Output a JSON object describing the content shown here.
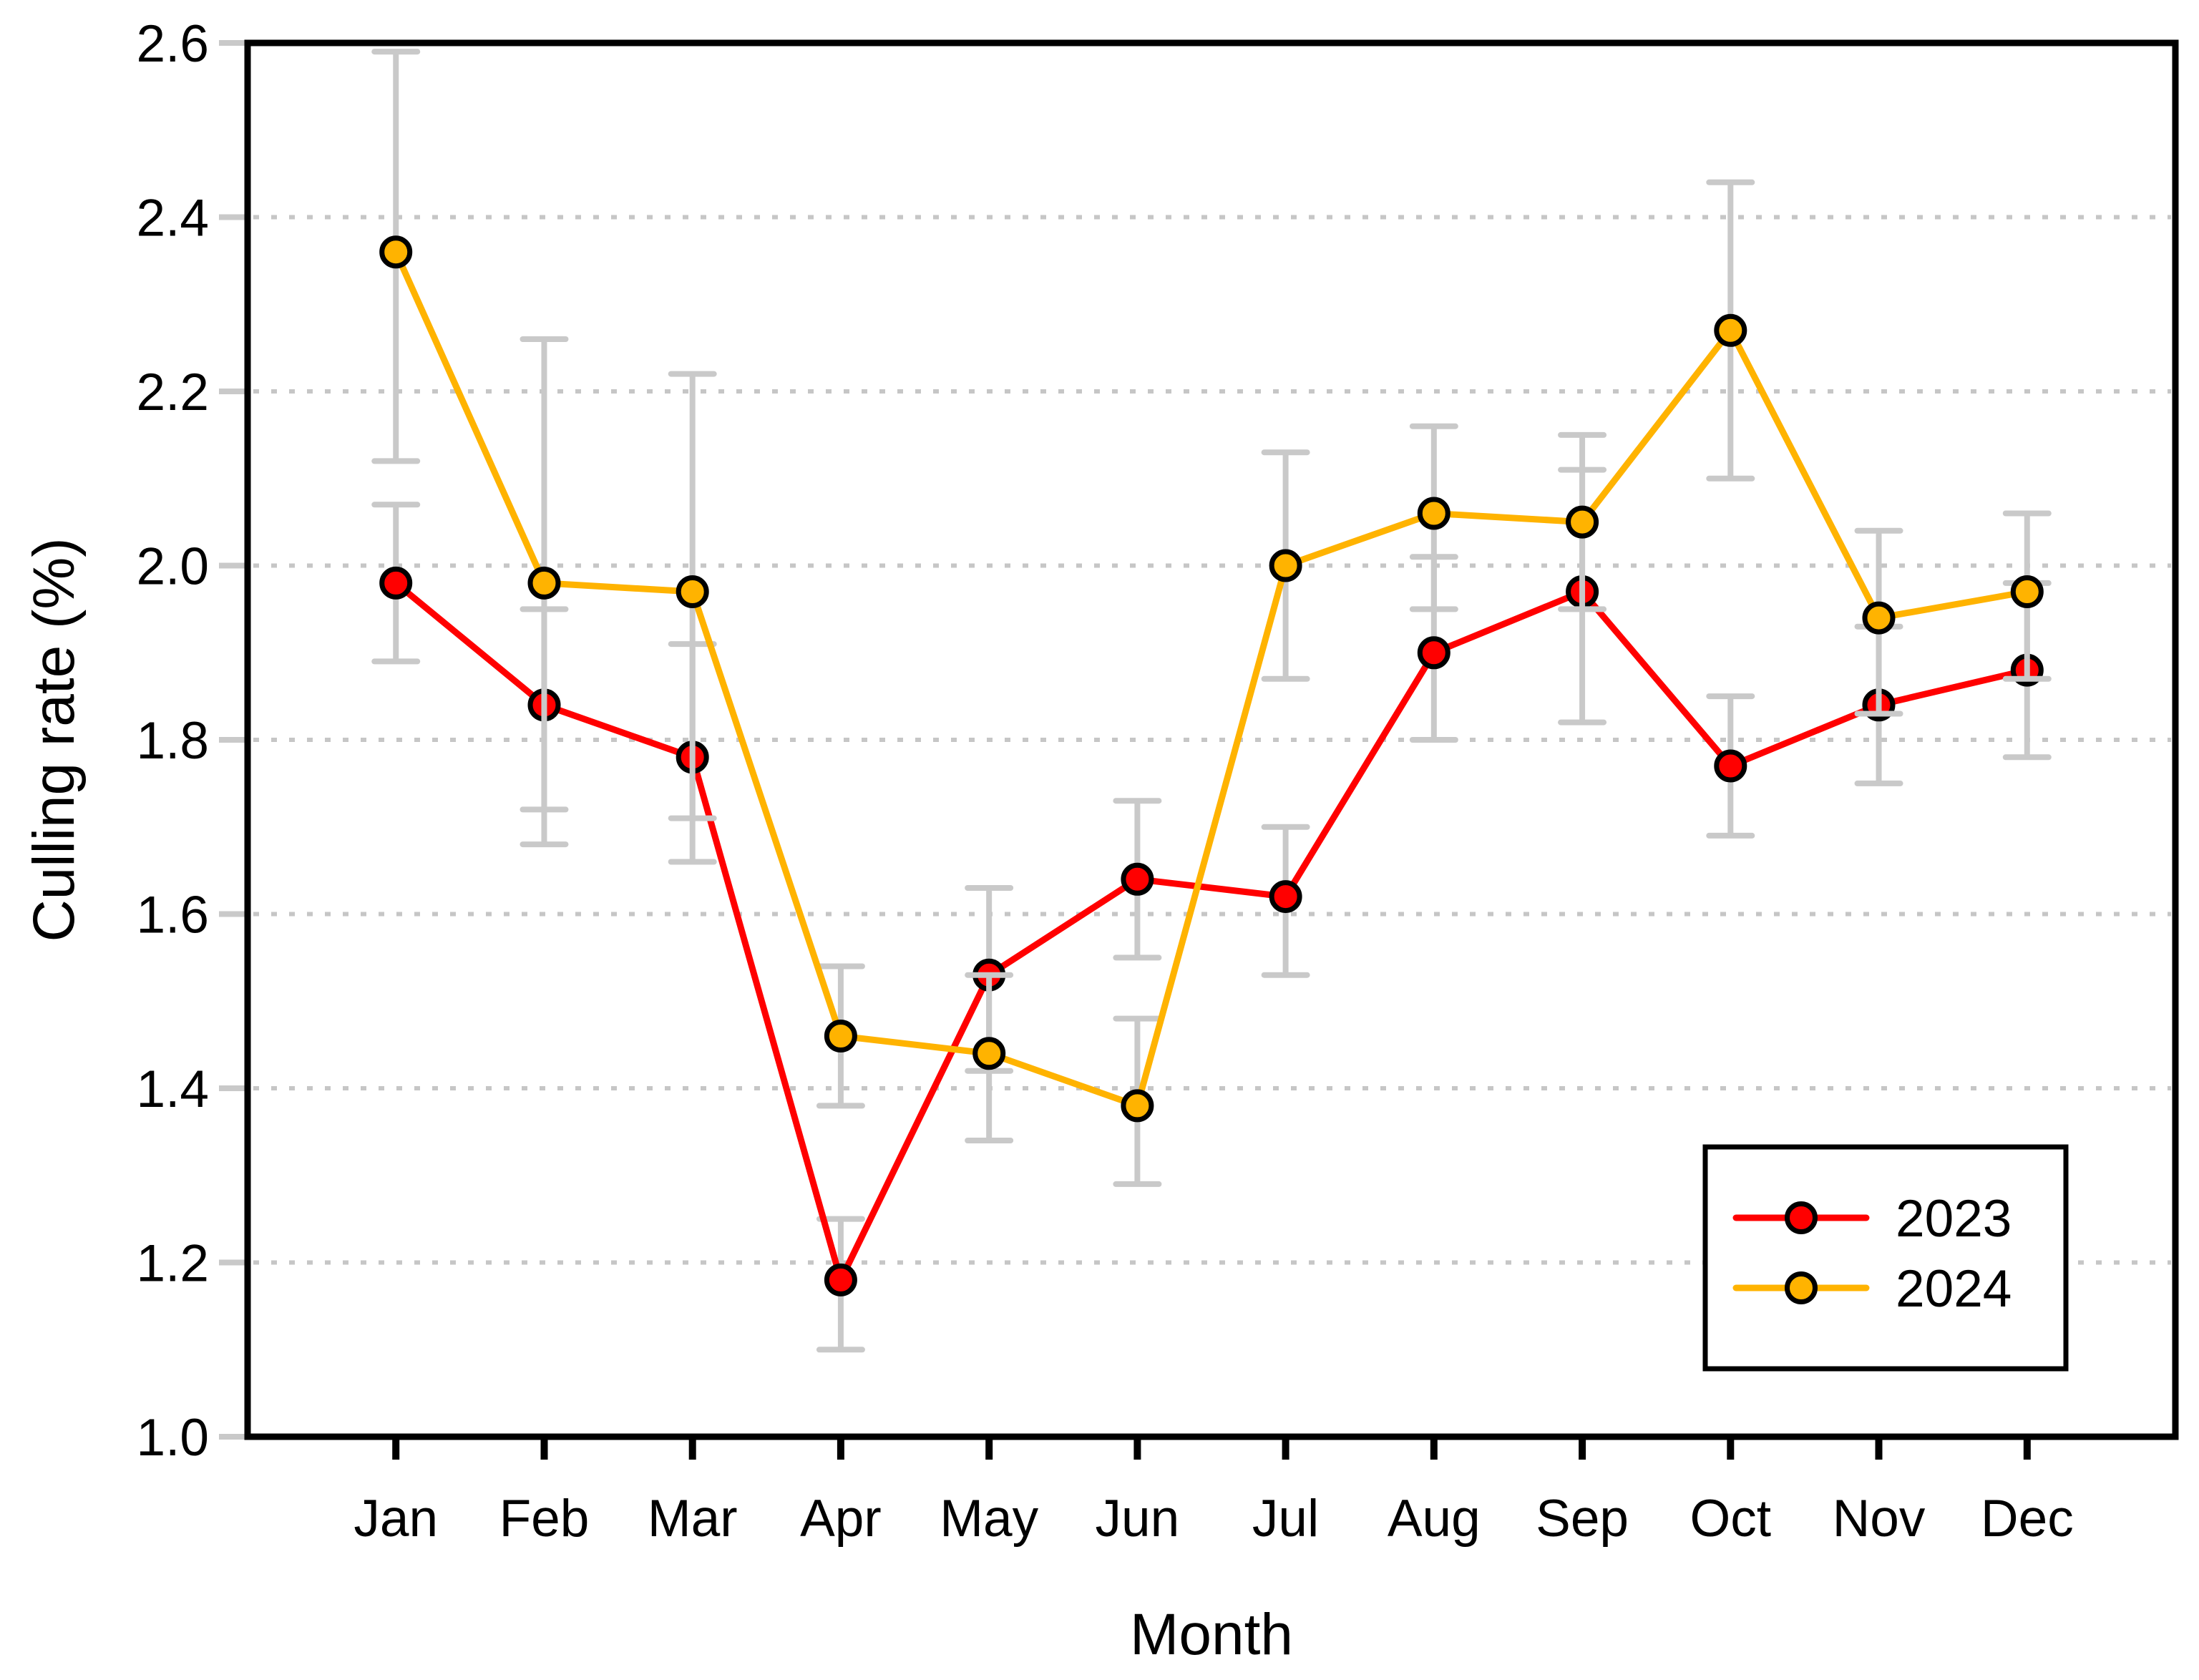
{
  "chart_data": {
    "type": "line",
    "title": "",
    "xlabel": "Month",
    "ylabel": "Culling rate (%)",
    "categories": [
      "Jan",
      "Feb",
      "Mar",
      "Apr",
      "May",
      "Jun",
      "Jul",
      "Aug",
      "Sep",
      "Oct",
      "Nov",
      "Dec"
    ],
    "ylim": [
      1.0,
      2.6
    ],
    "ytick_interval": 0.2,
    "ytick_labels": [
      "1.0",
      "1.2",
      "1.4",
      "1.6",
      "1.8",
      "2.0",
      "2.2",
      "2.4",
      "2.6"
    ],
    "grid": "horizontal dotted gridlines at 1.2 through 2.4",
    "grid_color": "#c6c6c6",
    "error_bar_color": "#c9c9c9",
    "frame_color": "#000000",
    "legend_position": "inside lower right, boxed",
    "series": [
      {
        "name": "2023",
        "color": "#ff0000",
        "marker": "circle-black-outline",
        "values": [
          1.98,
          1.84,
          1.78,
          1.18,
          1.53,
          1.64,
          1.62,
          1.9,
          1.97,
          1.77,
          1.84,
          1.88
        ],
        "err_low": [
          1.89,
          1.72,
          1.66,
          1.1,
          1.42,
          1.55,
          1.53,
          1.8,
          1.82,
          1.69,
          1.75,
          1.78
        ],
        "err_high": [
          2.07,
          1.95,
          1.91,
          1.25,
          1.63,
          1.73,
          1.7,
          2.01,
          2.11,
          1.85,
          1.93,
          1.98
        ]
      },
      {
        "name": "2024",
        "color": "#ffb300",
        "marker": "circle-black-outline",
        "values": [
          2.36,
          1.98,
          1.97,
          1.46,
          1.44,
          1.38,
          2.0,
          2.06,
          2.05,
          2.27,
          1.94,
          1.97
        ],
        "err_low": [
          2.12,
          1.68,
          1.71,
          1.38,
          1.34,
          1.29,
          1.87,
          1.95,
          1.95,
          2.1,
          1.83,
          1.87
        ],
        "err_high": [
          2.59,
          2.26,
          2.22,
          1.54,
          1.53,
          1.48,
          2.13,
          2.16,
          2.15,
          2.44,
          2.04,
          2.06
        ]
      }
    ]
  },
  "legend": {
    "items": [
      {
        "label": "2023"
      },
      {
        "label": "2024"
      }
    ]
  }
}
